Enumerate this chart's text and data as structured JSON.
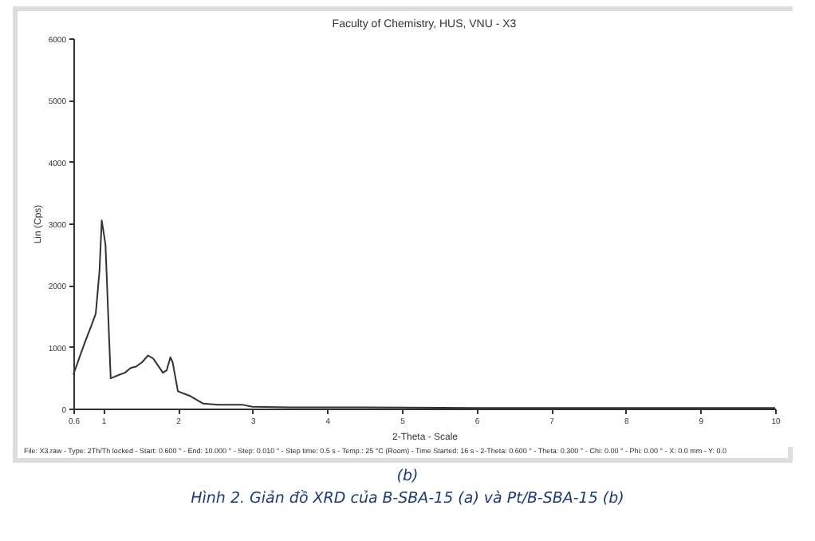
{
  "chart_data": {
    "type": "line",
    "title": "Faculty of Chemistry, HUS, VNU - X3",
    "xlabel": "2-Theta - Scale",
    "ylabel": "Lin (Cps)",
    "x": [
      0.6,
      0.67,
      0.76,
      0.84,
      0.9,
      0.95,
      0.98,
      1.03,
      1.1,
      1.22,
      1.29,
      1.37,
      1.44,
      1.52,
      1.6,
      1.67,
      1.8,
      1.85,
      1.9,
      1.93,
      2.0,
      2.17,
      2.34,
      2.54,
      2.87,
      3.0,
      3.5,
      4.5,
      6,
      8,
      10
    ],
    "series": [
      {
        "color": "#333333",
        "values": [
          550,
          790,
          1090,
          1340,
          1540,
          2230,
          3050,
          2660,
          490,
          550,
          580,
          660,
          680,
          750,
          860,
          810,
          580,
          620,
          830,
          750,
          280,
          200,
          80,
          60,
          60,
          30,
          20,
          20,
          10,
          10,
          10
        ]
      }
    ],
    "xlim": [
      0.6,
      10
    ],
    "xticks": [
      0.6,
      1,
      2,
      3,
      4,
      5,
      6,
      7,
      8,
      9,
      10
    ],
    "ylim": [
      0,
      6000
    ],
    "yticks": [
      0,
      1000,
      2000,
      3000,
      4000,
      5000,
      6000
    ],
    "marker": "none",
    "grid": false,
    "annotations": [
      "File: X3.raw - Type: 2Th/Th locked - Start: 0.600 ° - End: 10.000 ° - Step: 0.010 ° - Step time: 0.5 s - Temp.: 25 °C (Room) - Time Started: 16 s - 2-Theta: 0.600 ° - Theta: 0.300 ° - Chi: 0.00 ° - Phi: 0.00 ° - X: 0.0 mm - Y: 0.0",
      "(b)",
      "Hình 2. Giản đồ XRD của B-SBA-15 (a) và Pt/B-SBA-15 (b)"
    ]
  }
}
